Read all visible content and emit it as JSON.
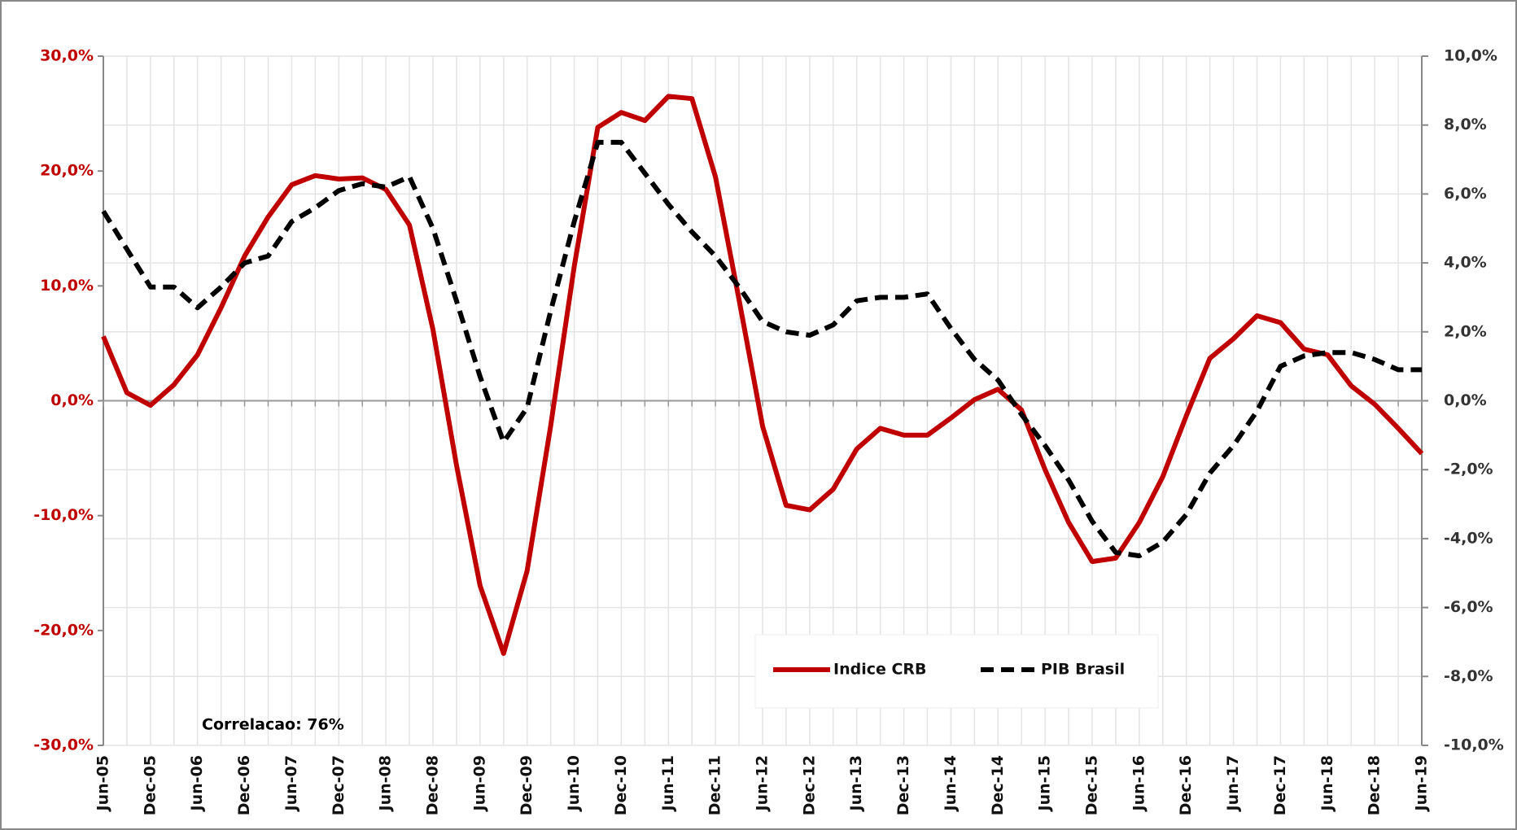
{
  "chart_data": {
    "type": "line",
    "categories": [
      "Jun-05",
      null,
      "Dec-05",
      null,
      "Jun-06",
      null,
      "Dec-06",
      null,
      "Jun-07",
      null,
      "Dec-07",
      null,
      "Jun-08",
      null,
      "Dec-08",
      null,
      "Jun-09",
      null,
      "Dec-09",
      null,
      "Jun-10",
      null,
      "Dec-10",
      null,
      "Jun-11",
      null,
      "Dec-11",
      null,
      "Jun-12",
      null,
      "Dec-12",
      null,
      "Jun-13",
      null,
      "Dec-13",
      null,
      "Jun-14",
      null,
      "Dec-14",
      null,
      "Jun-15",
      null,
      "Dec-15",
      null,
      "Jun-16",
      null,
      "Dec-16",
      null,
      "Jun-17",
      null,
      "Dec-17",
      null,
      "Jun-18",
      null,
      "Dec-18",
      null,
      "Jun-19"
    ],
    "series": [
      {
        "name": "Indice CRB",
        "color": "#c00000",
        "dashed": false,
        "values": [
          5.6,
          0.7,
          -0.4,
          1.4,
          4.0,
          8.1,
          12.6,
          16.0,
          18.8,
          19.6,
          19.3,
          19.4,
          18.4,
          15.3,
          6.2,
          -5.6,
          -16.1,
          -22.0,
          -14.8,
          -2.2,
          11.7,
          23.8,
          25.1,
          24.4,
          26.5,
          26.3,
          19.5,
          8.8,
          -2.2,
          -9.1,
          -9.5,
          -7.7,
          -4.2,
          -2.4,
          -3.0,
          -3.0,
          -1.5,
          0.1,
          1.0,
          -0.8,
          -6.0,
          -10.6,
          -14.0,
          -13.7,
          -10.6,
          -6.6,
          -1.3,
          3.7,
          5.4,
          7.4,
          6.8,
          4.5,
          4.0,
          1.3,
          -0.3,
          -2.4,
          -4.6
        ]
      },
      {
        "name": "PIB Brasil",
        "color": "#000000",
        "dashed": true,
        "axis": "y2",
        "values": [
          5.5,
          4.4,
          3.3,
          3.3,
          2.7,
          3.3,
          4.0,
          4.2,
          5.2,
          5.6,
          6.1,
          6.3,
          6.2,
          6.5,
          5.0,
          2.9,
          0.7,
          -1.2,
          -0.2,
          2.6,
          5.2,
          7.5,
          7.5,
          6.6,
          5.7,
          4.9,
          4.2,
          3.3,
          2.3,
          2.0,
          1.9,
          2.2,
          2.9,
          3.0,
          3.0,
          3.1,
          2.1,
          1.2,
          0.6,
          -0.4,
          -1.3,
          -2.3,
          -3.5,
          -4.4,
          -4.5,
          -4.1,
          -3.3,
          -2.1,
          -1.3,
          -0.3,
          1.0,
          1.3,
          1.4,
          1.4,
          1.2,
          0.9,
          0.9
        ]
      }
    ],
    "ylim": [
      -30,
      30
    ],
    "yticks": [
      {
        "value": -30,
        "label": "-30,0%"
      },
      {
        "value": -20,
        "label": "-20,0%"
      },
      {
        "value": -10,
        "label": "-10,0%"
      },
      {
        "value": 0,
        "label": "0,0%"
      },
      {
        "value": 10,
        "label": "10,0%"
      },
      {
        "value": 20,
        "label": "20,0%"
      },
      {
        "value": 30,
        "label": "30,0%"
      }
    ],
    "y2lim": [
      -10,
      10
    ],
    "y2ticks": [
      {
        "value": -10,
        "label": "-10,0%"
      },
      {
        "value": -8,
        "label": "-8,0%"
      },
      {
        "value": -6,
        "label": "-6,0%"
      },
      {
        "value": -4,
        "label": "-4,0%"
      },
      {
        "value": -2,
        "label": "-2,0%"
      },
      {
        "value": 0,
        "label": "0,0%"
      },
      {
        "value": 2,
        "label": "2,0%"
      },
      {
        "value": 4,
        "label": "4,0%"
      },
      {
        "value": 6,
        "label": "6,0%"
      },
      {
        "value": 8,
        "label": "8,0%"
      },
      {
        "value": 10,
        "label": "10,0%"
      }
    ],
    "grid": true,
    "annotation": "Correlacao: 76%"
  }
}
